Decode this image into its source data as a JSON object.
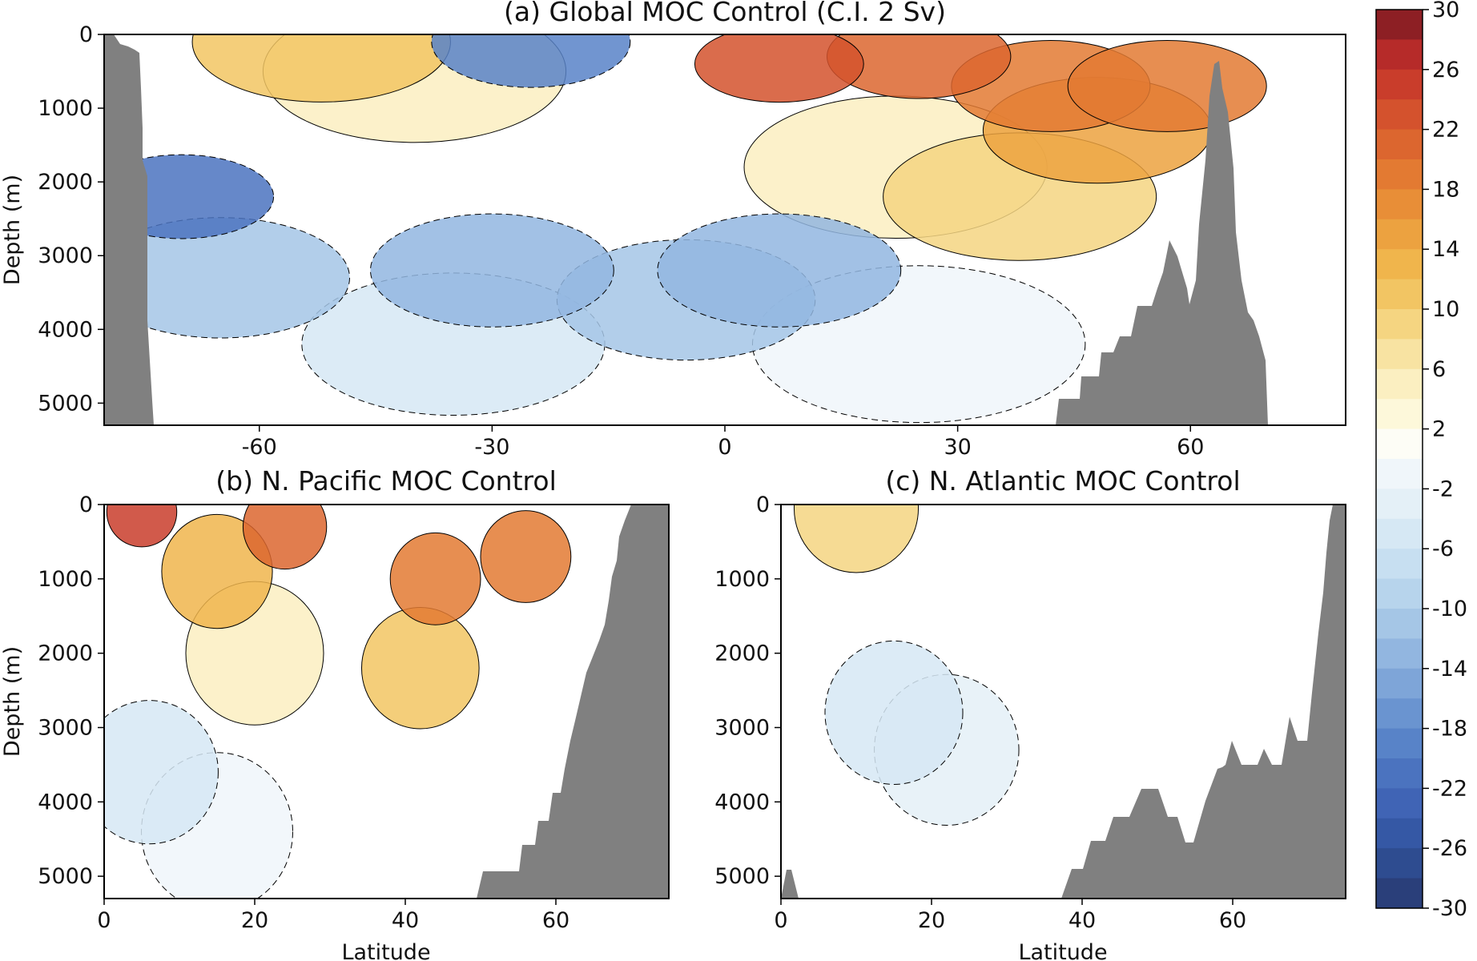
{
  "chart_data": [
    {
      "type": "heatmap",
      "panel": "a",
      "title": "(a) Global MOC Control  (C.I. 2 Sv)",
      "xlabel": "",
      "ylabel": "Depth (m)",
      "xlim": [
        -80,
        80
      ],
      "ylim": [
        5300,
        0
      ],
      "xticks": [
        "-60",
        "-30",
        "0",
        "30",
        "60"
      ],
      "xtick_values": [
        -60,
        -30,
        0,
        30,
        60
      ],
      "yticks": [
        "0",
        "1000",
        "2000",
        "3000",
        "4000",
        "5000"
      ],
      "ytick_values": [
        0,
        1000,
        2000,
        3000,
        4000,
        5000
      ],
      "contour_interval": 2,
      "cells": [
        {
          "x": 7,
          "y": 400,
          "v": 24
        },
        {
          "x": 25,
          "y": 300,
          "v": 22
        },
        {
          "x": 42,
          "y": 700,
          "v": 20
        },
        {
          "x": 57,
          "y": 700,
          "v": 20
        },
        {
          "x": 48,
          "y": 1300,
          "v": 16
        },
        {
          "x": 38,
          "y": 2200,
          "v": 10
        },
        {
          "x": 22,
          "y": 1800,
          "v": 6
        },
        {
          "x": -52,
          "y": 100,
          "v": 12
        },
        {
          "x": -40,
          "y": 500,
          "v": 6
        },
        {
          "x": -25,
          "y": 100,
          "v": -20
        },
        {
          "x": -70,
          "y": 2200,
          "v": -22
        },
        {
          "x": -65,
          "y": 3300,
          "v": -12
        },
        {
          "x": -30,
          "y": 3200,
          "v": -14
        },
        {
          "x": -5,
          "y": 3600,
          "v": -12
        },
        {
          "x": 7,
          "y": 3200,
          "v": -14
        },
        {
          "x": -35,
          "y": 4200,
          "v": -6
        },
        {
          "x": 25,
          "y": 4200,
          "v": -2
        }
      ]
    },
    {
      "type": "heatmap",
      "panel": "b",
      "title": "(b) N. Pacific MOC Control",
      "xlabel": "Latitude",
      "ylabel": "Depth (m)",
      "xlim": [
        0,
        75
      ],
      "ylim": [
        5300,
        0
      ],
      "xticks": [
        "0",
        "20",
        "40",
        "60"
      ],
      "xtick_values": [
        0,
        20,
        40,
        60
      ],
      "yticks": [
        "0",
        "1000",
        "2000",
        "3000",
        "4000",
        "5000"
      ],
      "ytick_values": [
        0,
        1000,
        2000,
        3000,
        4000,
        5000
      ],
      "contour_interval": 2,
      "cells": [
        {
          "x": 5,
          "y": 100,
          "v": 26
        },
        {
          "x": 24,
          "y": 300,
          "v": 22
        },
        {
          "x": 44,
          "y": 1000,
          "v": 20
        },
        {
          "x": 56,
          "y": 700,
          "v": 20
        },
        {
          "x": 15,
          "y": 900,
          "v": 14
        },
        {
          "x": 42,
          "y": 2200,
          "v": 12
        },
        {
          "x": 20,
          "y": 2000,
          "v": 6
        },
        {
          "x": 6,
          "y": 3600,
          "v": -6
        },
        {
          "x": 15,
          "y": 4400,
          "v": -2
        }
      ]
    },
    {
      "type": "heatmap",
      "panel": "c",
      "title": "(c) N. Atlantic MOC Control",
      "xlabel": "Latitude",
      "ylabel": "",
      "xlim": [
        0,
        75
      ],
      "ylim": [
        5300,
        0
      ],
      "xticks": [
        "0",
        "20",
        "40",
        "60"
      ],
      "xtick_values": [
        0,
        20,
        40,
        60
      ],
      "yticks": [
        "0",
        "1000",
        "2000",
        "3000",
        "4000",
        "5000"
      ],
      "ytick_values": [
        0,
        1000,
        2000,
        3000,
        4000,
        5000
      ],
      "contour_interval": 2,
      "cells": [
        {
          "x": 10,
          "y": 50,
          "v": 10
        },
        {
          "x": 15,
          "y": 2800,
          "v": -6
        },
        {
          "x": 22,
          "y": 3300,
          "v": -4
        }
      ]
    }
  ],
  "colorbar": {
    "ticks": [
      "30",
      "26",
      "22",
      "18",
      "14",
      "10",
      "6",
      "2",
      "-2",
      "-6",
      "-10",
      "-14",
      "-18",
      "-22",
      "-26",
      "-30"
    ],
    "min": -30,
    "max": 30,
    "levels": [
      -30,
      -28,
      -26,
      -24,
      -22,
      -20,
      -18,
      -16,
      -14,
      -12,
      -10,
      -8,
      -6,
      -4,
      -2,
      2,
      4,
      6,
      8,
      10,
      12,
      14,
      16,
      18,
      20,
      22,
      24,
      26,
      28,
      30
    ],
    "colors": [
      "#2a3f7a",
      "#2e4c90",
      "#3558a5",
      "#4064b5",
      "#4b73bf",
      "#5883c8",
      "#6a94d0",
      "#7ea5d8",
      "#92b6e0",
      "#a5c6e6",
      "#b7d4ec",
      "#c7dff1",
      "#d6e8f4",
      "#e4f0f7",
      "#f0f6fa",
      "#fdfdf6",
      "#fdf8da",
      "#fbefc1",
      "#f8e3a2",
      "#f5d581",
      "#f2c563",
      "#f0b54c",
      "#eca240",
      "#e88e37",
      "#e37a32",
      "#dc662f",
      "#d4522d",
      "#c93d2b",
      "#b62b29",
      "#8d1f24"
    ],
    "neutral_color": "#ffffff"
  }
}
